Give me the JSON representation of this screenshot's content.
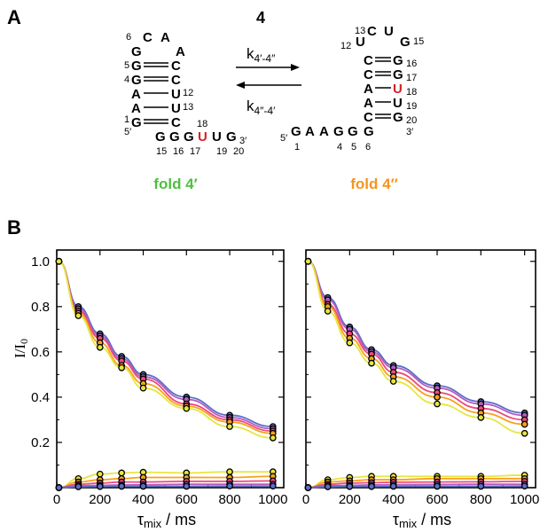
{
  "panel_a": {
    "label": "A",
    "compound": "4",
    "k_forward": "k4′-4″",
    "k_reverse": "k4″-4′",
    "fold1": {
      "name": "fold 4′",
      "color": "#4fbf3f",
      "loop": [
        "C",
        "A",
        "A",
        "G"
      ],
      "pairs": [
        [
          "G",
          "C"
        ],
        [
          "G",
          "C"
        ],
        [
          "A",
          "U"
        ],
        [
          "A",
          "U"
        ],
        [
          "G",
          "C"
        ]
      ],
      "tail": [
        "G",
        "G",
        "G",
        "U",
        "U",
        "G"
      ],
      "numbers": [
        "6",
        "5",
        "4",
        "12",
        "13",
        "1",
        "5′",
        "18",
        "15",
        "16",
        "17",
        "19",
        "20",
        "3′"
      ]
    },
    "fold2": {
      "name": "fold 4″",
      "color": "#f7941d",
      "loop": [
        "U",
        "C",
        "U",
        "G"
      ],
      "pairs": [
        [
          "C",
          "G"
        ],
        [
          "C",
          "G"
        ],
        [
          "A",
          "U"
        ],
        [
          "A",
          "U"
        ],
        [
          "C",
          "G"
        ]
      ],
      "tail": [
        "G",
        "A",
        "A",
        "G",
        "G",
        "G"
      ],
      "numbers": [
        "13",
        "12",
        "15",
        "16",
        "17",
        "18",
        "19",
        "20",
        "3′",
        "5′",
        "1",
        "4",
        "5",
        "6"
      ]
    },
    "highlight_color": "#d62027"
  },
  "panel_b": {
    "label": "B",
    "ylabel": "I/I0",
    "xlabel": "τmix / ms"
  },
  "chart_data": [
    {
      "type": "line",
      "xlim": [
        0,
        1050
      ],
      "ylim": [
        0,
        1.05
      ],
      "xticks": [
        0,
        200,
        400,
        600,
        800,
        1000
      ],
      "yticks": [
        0.2,
        0.4,
        0.6,
        0.8,
        1.0
      ],
      "x": [
        10,
        100,
        200,
        300,
        400,
        600,
        800,
        1000
      ],
      "series": [
        {
          "color": "#5b6ec7",
          "values": [
            1.0,
            0.8,
            0.68,
            0.58,
            0.5,
            0.4,
            0.32,
            0.27
          ]
        },
        {
          "color": "#b35ec0",
          "values": [
            1.0,
            0.79,
            0.67,
            0.57,
            0.49,
            0.39,
            0.31,
            0.26
          ]
        },
        {
          "color": "#ee4a7c",
          "values": [
            1.0,
            0.78,
            0.66,
            0.56,
            0.48,
            0.37,
            0.3,
            0.25
          ]
        },
        {
          "color": "#f7a21b",
          "values": [
            1.0,
            0.77,
            0.64,
            0.54,
            0.46,
            0.36,
            0.29,
            0.24
          ]
        },
        {
          "color": "#e6e640",
          "values": [
            1.0,
            0.76,
            0.62,
            0.53,
            0.44,
            0.35,
            0.27,
            0.22
          ]
        },
        {
          "color": "#e6e640",
          "values": [
            0.0,
            0.04,
            0.06,
            0.065,
            0.068,
            0.065,
            0.07,
            0.07
          ]
        },
        {
          "color": "#f7a21b",
          "values": [
            0.0,
            0.025,
            0.035,
            0.04,
            0.045,
            0.045,
            0.045,
            0.05
          ]
        },
        {
          "color": "#ee4a7c",
          "values": [
            0.0,
            0.015,
            0.02,
            0.025,
            0.025,
            0.028,
            0.028,
            0.03
          ]
        },
        {
          "color": "#b35ec0",
          "values": [
            0.0,
            0.008,
            0.01,
            0.012,
            0.013,
            0.015,
            0.015,
            0.015
          ]
        },
        {
          "color": "#5b6ec7",
          "values": [
            0.0,
            0.004,
            0.005,
            0.006,
            0.006,
            0.006,
            0.007,
            0.007
          ]
        }
      ]
    },
    {
      "type": "line",
      "xlim": [
        0,
        1050
      ],
      "ylim": [
        0,
        1.05
      ],
      "xticks": [
        0,
        200,
        400,
        600,
        800,
        1000
      ],
      "yticks": [
        0.2,
        0.4,
        0.6,
        0.8,
        1.0
      ],
      "x": [
        10,
        100,
        200,
        300,
        400,
        600,
        800,
        1000
      ],
      "series": [
        {
          "color": "#5b6ec7",
          "values": [
            1.0,
            0.84,
            0.71,
            0.61,
            0.54,
            0.45,
            0.38,
            0.33
          ]
        },
        {
          "color": "#b35ec0",
          "values": [
            1.0,
            0.83,
            0.7,
            0.6,
            0.53,
            0.44,
            0.37,
            0.32
          ]
        },
        {
          "color": "#ee4a7c",
          "values": [
            1.0,
            0.81,
            0.68,
            0.59,
            0.51,
            0.42,
            0.35,
            0.3
          ]
        },
        {
          "color": "#f7a21b",
          "values": [
            1.0,
            0.8,
            0.66,
            0.57,
            0.49,
            0.4,
            0.33,
            0.28
          ]
        },
        {
          "color": "#e6e640",
          "values": [
            1.0,
            0.78,
            0.64,
            0.55,
            0.47,
            0.37,
            0.31,
            0.24
          ]
        },
        {
          "color": "#e6e640",
          "values": [
            0.0,
            0.035,
            0.045,
            0.05,
            0.05,
            0.05,
            0.05,
            0.055
          ]
        },
        {
          "color": "#f7a21b",
          "values": [
            0.0,
            0.025,
            0.03,
            0.035,
            0.035,
            0.04,
            0.04,
            0.04
          ]
        },
        {
          "color": "#ee4a7c",
          "values": [
            0.0,
            0.015,
            0.02,
            0.022,
            0.024,
            0.025,
            0.026,
            0.028
          ]
        },
        {
          "color": "#b35ec0",
          "values": [
            0.0,
            0.008,
            0.01,
            0.012,
            0.013,
            0.014,
            0.015,
            0.015
          ]
        },
        {
          "color": "#5b6ec7",
          "values": [
            0.0,
            0.004,
            0.005,
            0.005,
            0.006,
            0.006,
            0.006,
            0.007
          ]
        }
      ]
    }
  ]
}
